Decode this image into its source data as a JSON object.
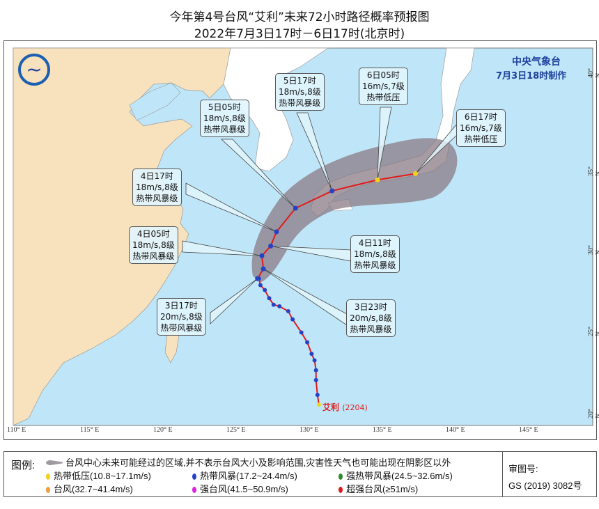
{
  "title": "今年第4号台风“艾利”未来72小时路径概率预报图",
  "subtitle": "2022年7月3日17时－6日17时(北京时)",
  "agency": {
    "name": "中央气象台",
    "issued": "7月3日18时制作"
  },
  "axes": {
    "lon_ticks": [
      "110° E",
      "115° E",
      "120° E",
      "125° E",
      "130° E",
      "135° E",
      "140° E",
      "145° E"
    ],
    "lat_ticks": [
      "40° N",
      "35° N",
      "30° N",
      "25° N",
      "20° N"
    ]
  },
  "typhoon": {
    "label": "艾利",
    "code": "(2204)",
    "label_color": "#e02020"
  },
  "past_track": [
    [
      130.9,
      20.2
    ],
    [
      130.8,
      20.8
    ],
    [
      130.7,
      21.7
    ],
    [
      130.7,
      22.3
    ],
    [
      130.6,
      22.9
    ],
    [
      130.4,
      23.3
    ],
    [
      130.1,
      24.0
    ],
    [
      129.7,
      24.6
    ],
    [
      129.1,
      25.4
    ],
    [
      128.8,
      25.9
    ],
    [
      128.2,
      26.2
    ],
    [
      127.8,
      26.3
    ],
    [
      127.5,
      26.7
    ],
    [
      127.2,
      27.2
    ],
    [
      126.9,
      27.5
    ],
    [
      126.8,
      27.9
    ]
  ],
  "forecast": [
    {
      "time": "3日17时",
      "wind": "20m/s,8级",
      "grade": "热带风暴级",
      "lon": 126.7,
      "lat": 27.9,
      "color": "#2442c8"
    },
    {
      "time": "3日23时",
      "wind": "20m/s,8级",
      "grade": "热带风暴级",
      "lon": 127.1,
      "lat": 28.5,
      "color": "#2442c8"
    },
    {
      "time": "4日05时",
      "wind": "18m/s,8级",
      "grade": "热带风暴级",
      "lon": 127.0,
      "lat": 29.3,
      "color": "#2442c8"
    },
    {
      "time": "4日11时",
      "wind": "18m/s,8级",
      "grade": "热带风暴级",
      "lon": 127.6,
      "lat": 29.9,
      "color": "#2442c8"
    },
    {
      "time": "4日17时",
      "wind": "18m/s,8级",
      "grade": "热带风暴级",
      "lon": 128.0,
      "lat": 30.8,
      "color": "#2442c8"
    },
    {
      "time": "5日05时",
      "wind": "18m/s,8级",
      "grade": "热带风暴级",
      "lon": 129.3,
      "lat": 32.3,
      "color": "#2442c8"
    },
    {
      "time": "5日17时",
      "wind": "18m/s,8级",
      "grade": "热带风暴级",
      "lon": 131.8,
      "lat": 33.4,
      "color": "#2442c8"
    },
    {
      "time": "6日05时",
      "wind": "16m/s,7级",
      "grade": "热带低压",
      "lon": 134.9,
      "lat": 34.1,
      "color": "#f3d21a"
    },
    {
      "time": "6日17时",
      "wind": "16m/s,7级",
      "grade": "热带低压",
      "lon": 137.5,
      "lat": 34.5,
      "color": "#f3d21a"
    }
  ],
  "legend": {
    "label": "图例:",
    "cone": "台风中心未来可能经过的区域,并不表示台风大小及影响范围,灾害性天气也可能出现在阴影区以外",
    "items": [
      {
        "text": "热带低压(10.8~17.1m/s)",
        "color": "#f3d21a"
      },
      {
        "text": "热带风暴(17.2~24.4m/s)",
        "color": "#2442c8"
      },
      {
        "text": "强热带风暴(24.5~32.6m/s)",
        "color": "#2f8a2f"
      },
      {
        "text": "台风(32.7~41.4m/s)",
        "color": "#f59a3c"
      },
      {
        "text": "强台风(41.5~50.9m/s)",
        "color": "#e020e0"
      },
      {
        "text": "超强台风(≥51m/s)",
        "color": "#e01a1a"
      }
    ],
    "review_label": "审图号:",
    "review_no": "GS (2019) 3082号"
  },
  "colors": {
    "sea": "#bfe6f8",
    "china": "#f8e2bd",
    "other_land": "#ffffff",
    "cone": "#8a7b85",
    "track": "#e01a1a"
  }
}
